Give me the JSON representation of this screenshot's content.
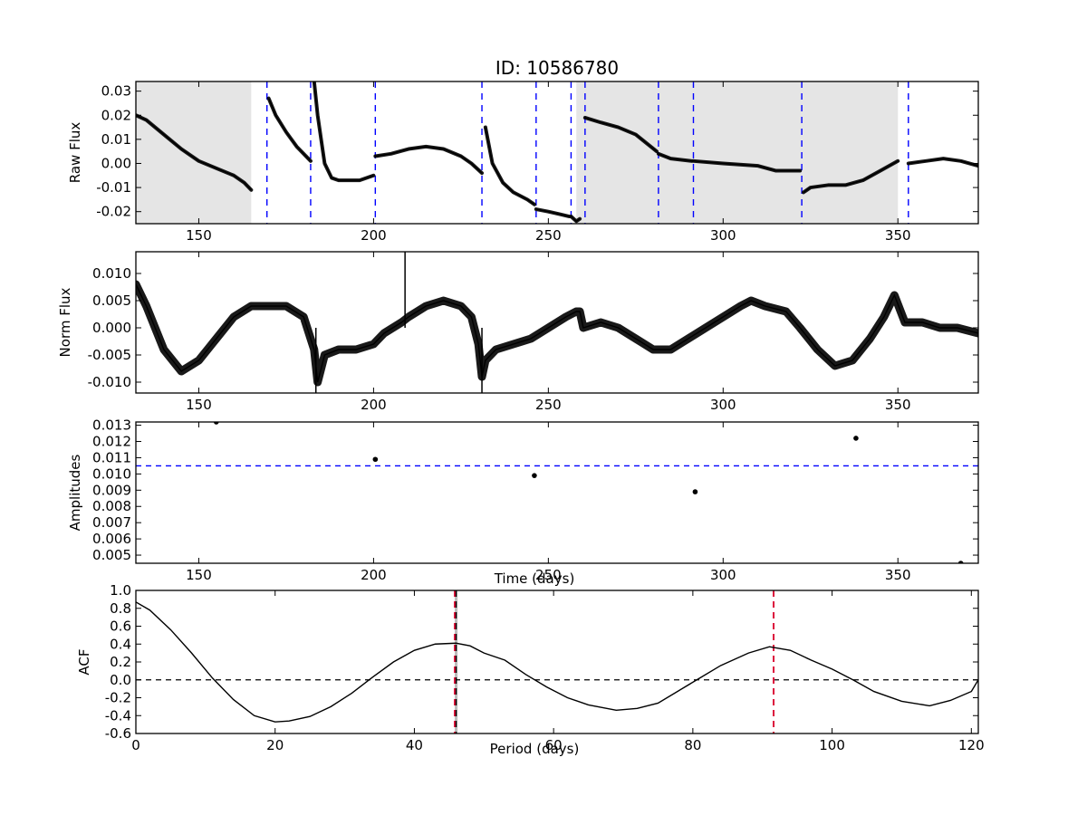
{
  "chart_data": [
    {
      "type": "line",
      "title": "ID: 10586780",
      "ylabel": "Raw Flux",
      "xlabel": "",
      "xlim": [
        132,
        373
      ],
      "ylim": [
        -0.025,
        0.034
      ],
      "xticks": [
        150,
        200,
        250,
        300,
        350
      ],
      "yticks": [
        -0.02,
        -0.01,
        0.0,
        0.01,
        0.02,
        0.03
      ],
      "shaded_regions": [
        [
          132,
          165
        ],
        [
          258,
          350
        ]
      ],
      "shade_color": "#e5e5e5",
      "vlines": [
        169.5,
        182,
        200.5,
        231,
        246.5,
        256.5,
        260.5,
        281.5,
        291.5,
        322.5,
        353
      ],
      "vline_color": "#0000ff",
      "series": [
        {
          "x": [
            132,
            135,
            140,
            145,
            150,
            155,
            160,
            163,
            165
          ],
          "y": [
            0.02,
            0.018,
            0.012,
            0.006,
            0.001,
            -0.002,
            -0.005,
            -0.008,
            -0.011
          ]
        },
        {
          "x": [
            170,
            172,
            175,
            178,
            182
          ],
          "y": [
            0.027,
            0.02,
            0.013,
            0.007,
            0.001
          ]
        },
        {
          "x": [
            183,
            184,
            185,
            186,
            188,
            190,
            193,
            196,
            200
          ],
          "y": [
            0.034,
            0.02,
            0.01,
            0.0,
            -0.006,
            -0.007,
            -0.007,
            -0.007,
            -0.005
          ]
        },
        {
          "x": [
            200.5,
            205,
            210,
            215,
            220,
            225,
            228,
            231
          ],
          "y": [
            0.003,
            0.004,
            0.006,
            0.007,
            0.006,
            0.003,
            0.0,
            -0.004
          ]
        },
        {
          "x": [
            232,
            234,
            237,
            240,
            244,
            246
          ],
          "y": [
            0.015,
            0.0,
            -0.008,
            -0.012,
            -0.015,
            -0.017
          ]
        },
        {
          "x": [
            246.5,
            250,
            253,
            256
          ],
          "y": [
            -0.019,
            -0.02,
            -0.021,
            -0.022
          ]
        },
        {
          "x": [
            256.5,
            258,
            259
          ],
          "y": [
            -0.022,
            -0.024,
            -0.023
          ]
        },
        {
          "x": [
            260.5,
            265,
            270,
            275,
            281
          ],
          "y": [
            0.019,
            0.017,
            0.015,
            0.012,
            0.005
          ]
        },
        {
          "x": [
            281.5,
            285,
            291
          ],
          "y": [
            0.004,
            0.002,
            0.001
          ]
        },
        {
          "x": [
            291.5,
            300,
            310,
            315,
            322
          ],
          "y": [
            0.001,
            0.0,
            -0.001,
            -0.003,
            -0.003
          ]
        },
        {
          "x": [
            323,
            325,
            330,
            335,
            340,
            345,
            350
          ],
          "y": [
            -0.012,
            -0.01,
            -0.009,
            -0.009,
            -0.007,
            -0.003,
            0.001
          ]
        },
        {
          "x": [
            353,
            358,
            363,
            368,
            373
          ],
          "y": [
            0.0,
            0.001,
            0.002,
            0.001,
            -0.001
          ]
        }
      ]
    },
    {
      "type": "line",
      "title": "",
      "ylabel": "Norm Flux",
      "xlabel": "",
      "xlim": [
        132,
        373
      ],
      "ylim": [
        -0.012,
        0.014
      ],
      "xticks": [
        150,
        200,
        250,
        300,
        350
      ],
      "yticks": [
        -0.01,
        -0.005,
        0.0,
        0.005,
        0.01
      ],
      "series": [
        {
          "x": [
            132,
            135,
            140,
            145,
            150,
            155,
            160,
            165,
            170,
            175,
            180,
            183,
            184,
            186,
            190,
            195,
            200,
            203,
            208,
            210,
            215,
            220,
            225,
            228,
            230,
            231,
            232,
            235,
            240,
            245,
            250,
            255,
            258,
            259,
            260,
            265,
            270,
            275,
            280,
            285,
            290,
            295,
            300,
            305,
            308,
            312,
            318,
            322,
            327,
            332,
            337,
            342,
            346,
            349,
            352,
            357,
            362,
            367,
            373
          ],
          "y": [
            0.008,
            0.004,
            -0.004,
            -0.008,
            -0.006,
            -0.002,
            0.002,
            0.004,
            0.004,
            0.004,
            0.002,
            -0.004,
            -0.01,
            -0.005,
            -0.004,
            -0.004,
            -0.003,
            -0.001,
            0.001,
            0.002,
            0.004,
            0.005,
            0.004,
            0.002,
            -0.003,
            -0.009,
            -0.006,
            -0.004,
            -0.003,
            -0.002,
            0.0,
            0.002,
            0.003,
            0.003,
            0.0,
            0.001,
            0.0,
            -0.002,
            -0.004,
            -0.004,
            -0.002,
            0.0,
            0.002,
            0.004,
            0.005,
            0.004,
            0.003,
            0.0,
            -0.004,
            -0.007,
            -0.006,
            -0.002,
            0.002,
            0.006,
            0.001,
            0.001,
            0.0,
            0.0,
            -0.001
          ]
        }
      ],
      "spikes": [
        {
          "x": 209,
          "y": 0.014
        },
        {
          "x": 183.5,
          "y": -0.012
        },
        {
          "x": 231,
          "y": -0.012
        }
      ]
    },
    {
      "type": "scatter",
      "title": "",
      "ylabel": "Amplitudes",
      "xlabel": "Time (days)",
      "xlim": [
        132,
        373
      ],
      "ylim": [
        0.0045,
        0.0132
      ],
      "xticks": [
        150,
        200,
        250,
        300,
        350
      ],
      "yticks": [
        0.005,
        0.006,
        0.007,
        0.008,
        0.009,
        0.01,
        0.011,
        0.012,
        0.013
      ],
      "x": [
        155,
        200.5,
        246,
        292,
        338,
        368
      ],
      "y": [
        0.0132,
        0.0109,
        0.0099,
        0.0089,
        0.0122,
        0.0045
      ],
      "hline": 0.0105,
      "hline_color": "#0000ff"
    },
    {
      "type": "line",
      "title": "",
      "ylabel": "ACF",
      "xlabel": "Period (days)",
      "xlim": [
        0,
        121
      ],
      "ylim": [
        -0.6,
        1.0
      ],
      "xticks": [
        0,
        20,
        40,
        60,
        80,
        100,
        120
      ],
      "yticks": [
        -0.6,
        -0.4,
        -0.2,
        0.0,
        0.2,
        0.4,
        0.6,
        0.8,
        1.0
      ],
      "hline": 0.0,
      "vlines_red": [
        45.8,
        91.6
      ],
      "vline_red_color": "#dc143c",
      "vline_black": 46.0,
      "shaded_band": [
        45.8,
        46.2
      ],
      "series": [
        {
          "x": [
            0,
            2,
            5,
            8,
            11,
            14,
            17,
            20,
            22,
            25,
            28,
            31,
            34,
            37,
            40,
            43,
            46,
            48,
            50,
            53,
            56,
            59,
            62,
            65,
            69,
            72,
            75,
            78,
            81,
            84,
            88,
            91,
            94,
            97,
            100,
            103,
            106,
            110,
            114,
            117,
            120,
            121
          ],
          "y": [
            0.87,
            0.78,
            0.56,
            0.3,
            0.02,
            -0.22,
            -0.4,
            -0.47,
            -0.46,
            -0.41,
            -0.3,
            -0.15,
            0.03,
            0.2,
            0.33,
            0.4,
            0.41,
            0.38,
            0.3,
            0.22,
            0.06,
            -0.08,
            -0.2,
            -0.28,
            -0.34,
            -0.32,
            -0.26,
            -0.12,
            0.02,
            0.16,
            0.3,
            0.37,
            0.33,
            0.22,
            0.12,
            0.0,
            -0.13,
            -0.24,
            -0.29,
            -0.23,
            -0.13,
            0.0
          ]
        }
      ]
    }
  ]
}
